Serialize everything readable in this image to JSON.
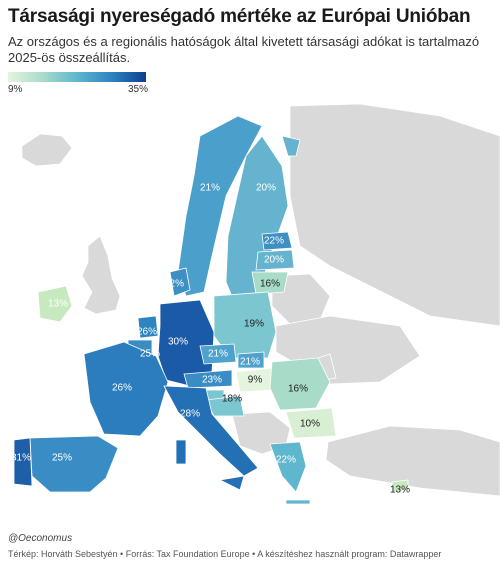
{
  "title": "Társasági nyereségadó mértéke az Európai Unióban",
  "subtitle": "Az országos és a regionális hatóságok által kivetett társasági adókat is tartalmazó 2025-ös összeállítás.",
  "legend": {
    "min": "9%",
    "max": "35%"
  },
  "colors": {
    "non_eu": "#d9d9d9",
    "scale_low": "#e4f4df",
    "scale_high": "#0d3f8f"
  },
  "countries": [
    {
      "name": "Portugália",
      "label": "31%",
      "value": 31
    },
    {
      "name": "Spanyolország",
      "label": "25%",
      "value": 25
    },
    {
      "name": "Franciaország",
      "label": "26%",
      "value": 26
    },
    {
      "name": "Belgium",
      "label": "25%",
      "value": 25
    },
    {
      "name": "Hollandia",
      "label": "26%",
      "value": 26
    },
    {
      "name": "Németország",
      "label": "30%",
      "value": 30
    },
    {
      "name": "Dánia",
      "label": "22%",
      "value": 22
    },
    {
      "name": "Írország",
      "label": "13%",
      "value": 13
    },
    {
      "name": "Norvégia",
      "label": "21%",
      "value": 21
    },
    {
      "name": "Svédország",
      "label": "20%",
      "value": 20
    },
    {
      "name": "Észtország",
      "label": "22%",
      "value": 22
    },
    {
      "name": "Lettország",
      "label": "20%",
      "value": 20
    },
    {
      "name": "Litvánia",
      "label": "16%",
      "value": 16
    },
    {
      "name": "Lengyelország",
      "label": "19%",
      "value": 19
    },
    {
      "name": "Csehország",
      "label": "21%",
      "value": 21
    },
    {
      "name": "Szlovákia",
      "label": "21%",
      "value": 21
    },
    {
      "name": "Ausztria",
      "label": "23%",
      "value": 23
    },
    {
      "name": "Magyarország",
      "label": "9%",
      "value": 9
    },
    {
      "name": "Románia",
      "label": "16%",
      "value": 16
    },
    {
      "name": "Horvátország",
      "label": "18%",
      "value": 18
    },
    {
      "name": "Olaszország",
      "label": "28%",
      "value": 28
    },
    {
      "name": "Bulgária",
      "label": "10%",
      "value": 10
    },
    {
      "name": "Görögország",
      "label": "22%",
      "value": 22
    },
    {
      "name": "Ciprus",
      "label": "13%",
      "value": 13
    }
  ],
  "credit": "@Oeconomus",
  "source": "Térkép: Horváth Sebestyén • Forrás: Tax Foundation Europe • A készítéshez használt program: Datawrapper"
}
